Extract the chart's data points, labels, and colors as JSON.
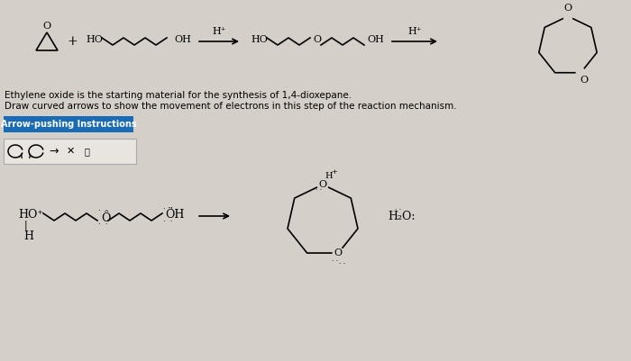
{
  "bg_color": "#d4cfc9",
  "text_color": "#000000",
  "title_text1": "Ethylene oxide is the starting material for the synthesis of 1,4-dioxepane.",
  "title_text2": "Draw curved arrows to show the movement of electrons in this step of the reaction mechanism.",
  "button_text": "Arrow-pushing Instructions",
  "button_bg": "#1a6bb5",
  "button_fg": "#ffffff",
  "fig_width": 7.0,
  "fig_height": 4.01,
  "dpi": 100
}
